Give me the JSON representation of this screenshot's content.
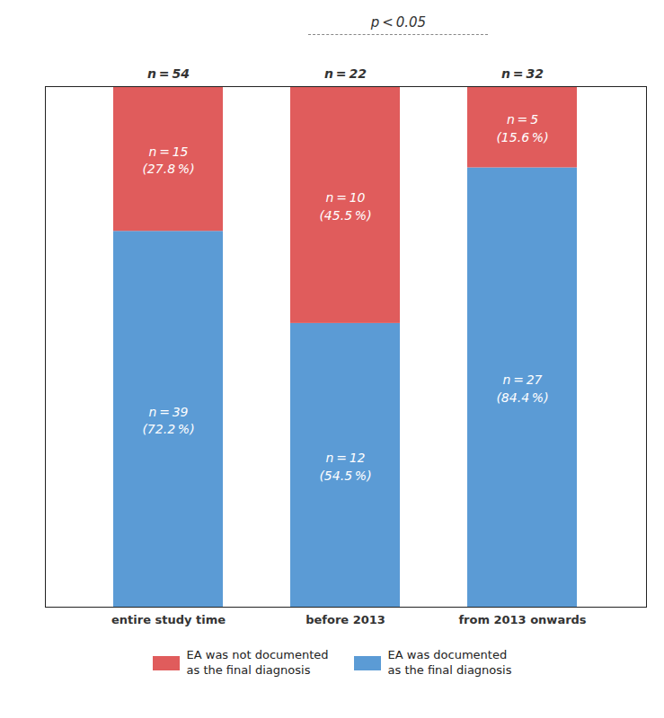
{
  "chart_data": {
    "type": "bar",
    "stacked": true,
    "categories": [
      "entire study time",
      "before 2013",
      "from 2013 onwards"
    ],
    "series": [
      {
        "name": "EA was documented\nas the final diagnosis",
        "color": "#5b9bd5",
        "values": [
          72.2,
          54.5,
          84.4
        ],
        "value_labels": [
          "n = 39\n(72.2 %)",
          "n = 12\n(54.5 %)",
          "n = 27\n(84.4 %)"
        ]
      },
      {
        "name": "EA was not documented\nas the final diagnosis",
        "color": "#e05c5c",
        "values": [
          27.8,
          45.5,
          15.6
        ],
        "value_labels": [
          "n = 15\n(27.8 %)",
          "n = 10\n(45.5 %)",
          "n = 5\n(15.6 %)"
        ]
      }
    ],
    "data_labels": true,
    "annotations": [
      {
        "text": "p < 0.05"
      },
      {
        "text": "n = 54",
        "category": "entire study time"
      },
      {
        "text": "n = 22",
        "category": "before 2013"
      },
      {
        "text": "n = 32",
        "category": "from 2013 onwards"
      }
    ],
    "ylim": [
      0,
      100
    ],
    "tick_labels": "x",
    "grid": false,
    "legend": "bottom"
  }
}
